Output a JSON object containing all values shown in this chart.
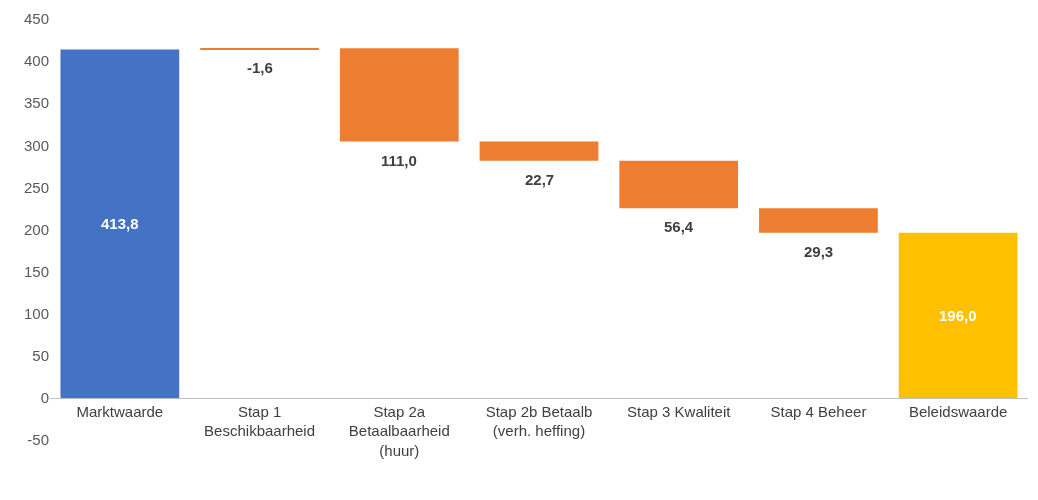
{
  "chart_data": {
    "type": "bar",
    "categories": [
      "Marktwaarde",
      "Stap 1\nBeschikbaarheid",
      "Stap 2a\nBetaalbaarheid\n(huur)",
      "Stap 2b Betaalb\n(verh. heffing)",
      "Stap 3 Kwaliteit",
      "Stap 4 Beheer",
      "Beleidswaarde"
    ],
    "values": [
      413.8,
      -1.6,
      -111.0,
      -22.7,
      -56.4,
      -29.3,
      196.0
    ],
    "base": [
      0,
      415.4,
      415.4,
      304.4,
      281.7,
      225.3,
      0
    ],
    "colors": [
      "#4472c4",
      "#ed7d31",
      "#ed7d31",
      "#ed7d31",
      "#ed7d31",
      "#ed7d31",
      "#ffc000"
    ],
    "value_labels": [
      "413,8",
      "-1,6",
      "111,0",
      "22,7",
      "56,4",
      "29,3",
      "196,0"
    ],
    "ylim": [
      -50,
      450
    ],
    "yticks": [
      -50,
      0,
      50,
      100,
      150,
      200,
      250,
      300,
      350,
      400,
      450
    ]
  }
}
